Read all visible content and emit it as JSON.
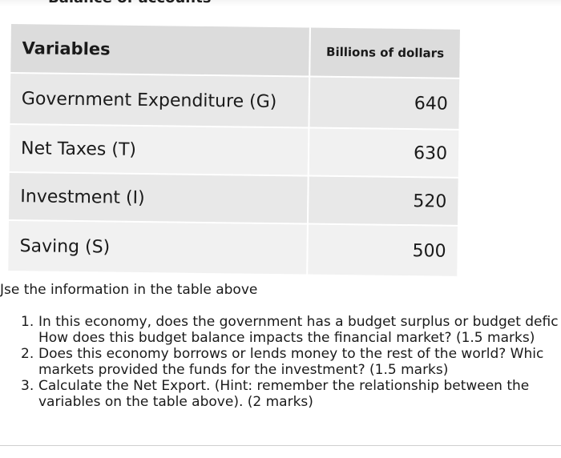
{
  "header_fragment": "Balance of accounts",
  "table": {
    "col_headers": [
      "Variables",
      "Billions of dollars"
    ],
    "rows": [
      {
        "label": "Government Expenditure (G)",
        "value": "640"
      },
      {
        "label": "Net Taxes (T)",
        "value": "630"
      },
      {
        "label": "Investment (I)",
        "value": "520"
      },
      {
        "label": "Saving (S)",
        "value": "500"
      }
    ]
  },
  "instructions": {
    "intro": "Jse the information in the table above",
    "questions": [
      {
        "num": "1.",
        "lines": [
          "In this economy, does the government has a budget surplus or budget defic",
          "How does this budget balance impacts the financial market? (1.5 marks)"
        ]
      },
      {
        "num": "2.",
        "lines": [
          "Does this economy borrows or lends money to the rest of the world? Whic",
          "markets provided the funds for the investment? (1.5 marks)"
        ]
      },
      {
        "num": "3.",
        "lines": [
          "Calculate the Net Export. (Hint: remember the relationship between the",
          "variables on the table above). (2 marks)"
        ]
      }
    ]
  }
}
